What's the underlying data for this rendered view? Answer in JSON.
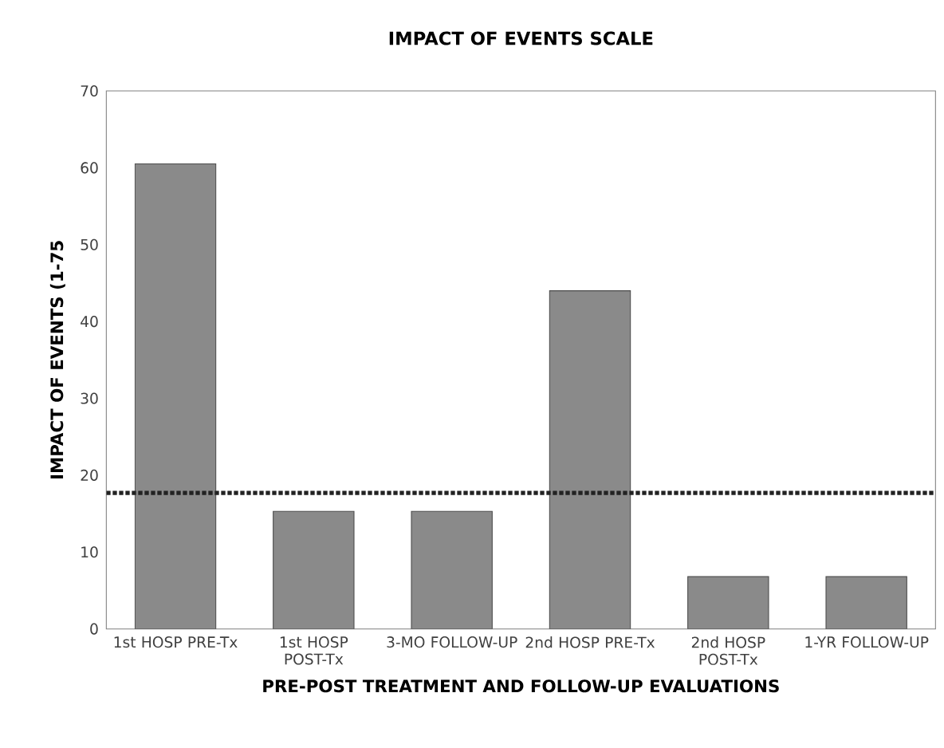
{
  "chart_data": {
    "type": "bar",
    "title": "IMPACT OF EVENTS SCALE",
    "xlabel": "PRE-POST TREATMENT AND FOLLOW-UP EVALUATIONS",
    "ylabel": "IMPACT OF EVENTS (1-75",
    "categories": [
      "1st HOSP PRE-Tx",
      "1st HOSP POST-Tx",
      "3-MO FOLLOW-UP",
      "2nd HOSP PRE-Tx",
      "2nd HOSP POST-Tx",
      "1-YR FOLLOW-UP"
    ],
    "values": [
      60.5,
      15.3,
      15.3,
      44,
      6.8,
      6.8
    ],
    "color": "#8a8a8a",
    "ylim": [
      0,
      70
    ],
    "yticks": [
      0,
      10,
      20,
      30,
      40,
      50,
      60,
      70
    ],
    "ref_lines": [
      {
        "axis": "y",
        "value": 17.7,
        "color": "#222222",
        "line_style": "dotted"
      }
    ],
    "grid": false
  }
}
